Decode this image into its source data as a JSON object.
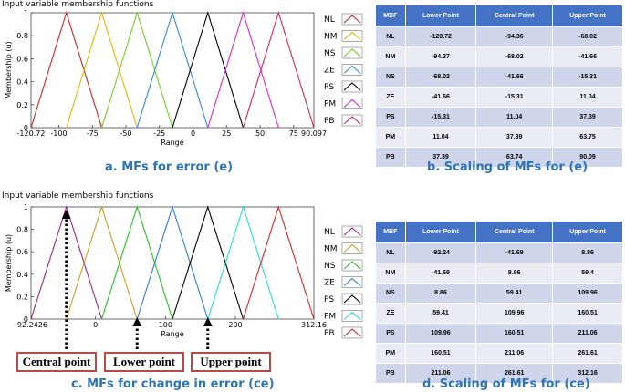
{
  "chart_data": [
    {
      "type": "line",
      "title": "Input variable membership functions",
      "xlabel": "Range",
      "ylabel": "Membership (u)",
      "xlim": [
        -120.72,
        90.097
      ],
      "ylim": [
        0,
        1
      ],
      "x_ticks": [
        "-120.72",
        "-100",
        "-75",
        "-50",
        "-25",
        "0",
        "25",
        "50",
        "75",
        "90.097"
      ],
      "x_tick_values": [
        -120.72,
        -100,
        -75,
        -50,
        -25,
        0,
        25,
        50,
        75,
        90.097
      ],
      "y_ticks": [
        "0",
        "0.2",
        "0.4",
        "0.6",
        "0.8",
        "1"
      ],
      "series": [
        {
          "name": "NL",
          "color": "#d42020",
          "points": [
            -120.72,
            -94.36,
            -68.02
          ]
        },
        {
          "name": "NM",
          "color": "#e6b800",
          "points": [
            -94.37,
            -68.02,
            -41.66
          ]
        },
        {
          "name": "NS",
          "color": "#70d420",
          "points": [
            -68.02,
            -41.66,
            -15.31
          ]
        },
        {
          "name": "ZE",
          "color": "#2a8ae6",
          "points": [
            -41.66,
            -15.31,
            11.04
          ]
        },
        {
          "name": "PS",
          "color": "#000000",
          "points": [
            -15.31,
            11.04,
            37.39
          ]
        },
        {
          "name": "PM",
          "color": "#e020e0",
          "points": [
            11.04,
            37.39,
            63.75
          ]
        },
        {
          "name": "PB",
          "color": "#e0205a",
          "points": [
            37.39,
            63.74,
            90.09
          ]
        }
      ],
      "caption": "a. MFs  for error (e)"
    },
    {
      "type": "line",
      "title": "Input variable membership functions",
      "xlabel": "Range",
      "ylabel": "Membership (u)",
      "xlim": [
        -92.2426,
        312.16
      ],
      "ylim": [
        0,
        1
      ],
      "x_ticks": [
        "-92.2426",
        "0",
        "100",
        "200",
        "312.16"
      ],
      "x_tick_values": [
        -92.2426,
        0,
        100,
        200,
        312.16
      ],
      "y_ticks": [
        "0",
        "0.2",
        "0.4",
        "0.6",
        "0.8",
        "1"
      ],
      "series": [
        {
          "name": "NL",
          "color": "#a0208c",
          "points": [
            -92.24,
            -41.69,
            8.86
          ]
        },
        {
          "name": "NM",
          "color": "#d49a20",
          "points": [
            -41.69,
            8.86,
            59.4
          ]
        },
        {
          "name": "NS",
          "color": "#20c820",
          "points": [
            8.86,
            59.41,
            109.96
          ]
        },
        {
          "name": "ZE",
          "color": "#2a7ae6",
          "points": [
            59.41,
            109.96,
            160.51
          ]
        },
        {
          "name": "PS",
          "color": "#000000",
          "points": [
            109.96,
            160.51,
            211.06
          ]
        },
        {
          "name": "PM",
          "color": "#20e0e0",
          "points": [
            160.51,
            211.06,
            261.61
          ]
        },
        {
          "name": "PB",
          "color": "#e02020",
          "points": [
            211.06,
            261.61,
            312.16
          ]
        }
      ],
      "annotations": [
        "Central point",
        "Lower point",
        "Upper point"
      ],
      "caption": "c. MFs  for change in  error (ce)"
    },
    {
      "type": "table",
      "headers": [
        "MBF",
        "Lower Point",
        "Central Point",
        "Upper Point"
      ],
      "rows": [
        [
          "NL",
          "-120.72",
          "-94.36",
          "-68.02"
        ],
        [
          "NM",
          "-94.37",
          "-68.02",
          "-41.66"
        ],
        [
          "NS",
          "-68.02",
          "-41.66",
          "-15.31"
        ],
        [
          "ZE",
          "-41.66",
          "-15.31",
          "11.04"
        ],
        [
          "PS",
          "-15.31",
          "11.04",
          "37.39"
        ],
        [
          "PM",
          "11.04",
          "37.39",
          "63.75"
        ],
        [
          "PB",
          "37.39",
          "63.74",
          "90.09"
        ]
      ],
      "caption": "b. Scaling of MFs for (e)"
    },
    {
      "type": "table",
      "headers": [
        "MBF",
        "Lower  Point",
        "Central Point",
        "Upper Point"
      ],
      "rows": [
        [
          "NL",
          "-92.24",
          "-41.69",
          "8.86"
        ],
        [
          "NM",
          "-41.69",
          "8.86",
          "59.4"
        ],
        [
          "NS",
          "8.86",
          "59.41",
          "109.96"
        ],
        [
          "ZE",
          "59.41",
          "109.96",
          "160.51"
        ],
        [
          "PS",
          "109.96",
          "160.51",
          "211.06"
        ],
        [
          "PM",
          "160.51",
          "211.06",
          "261.61"
        ],
        [
          "PB",
          "211.06",
          "261.61",
          "312.16"
        ]
      ],
      "caption": "d. Scaling of MFs for (ce)"
    }
  ]
}
